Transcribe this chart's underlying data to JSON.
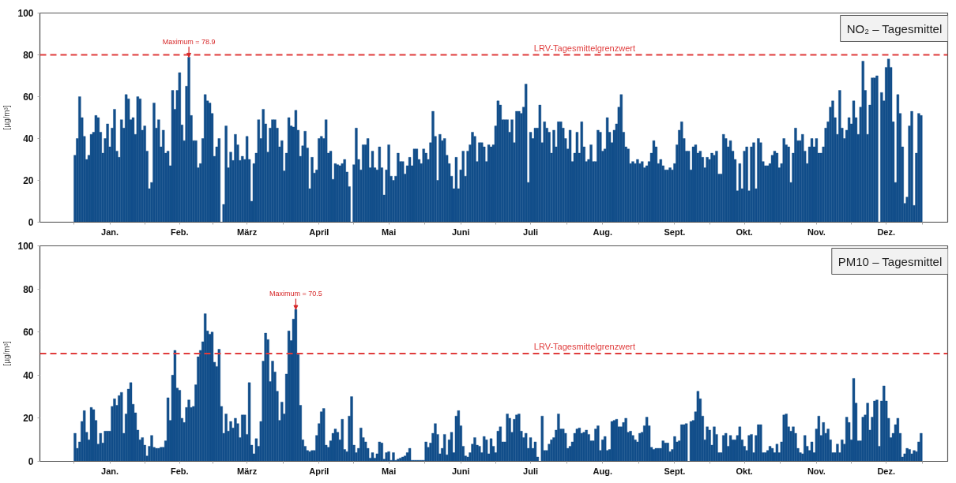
{
  "chart_data": [
    {
      "type": "bar",
      "title": "NO₂ – Tagesmittel",
      "ylabel": "[µg/m³]",
      "color": "#124e8a",
      "categories": [
        null,
        null,
        null,
        null,
        null,
        null,
        null,
        null,
        null,
        null,
        null,
        null,
        null,
        null,
        null,
        "Jan.",
        null,
        null,
        null,
        null,
        null,
        null,
        null,
        null,
        null,
        null,
        null,
        null,
        null,
        null,
        null,
        null,
        null,
        null,
        null,
        null,
        null,
        null,
        null,
        null,
        null,
        null,
        null,
        null,
        null,
        "Feb.",
        null,
        null,
        null,
        null,
        null,
        null,
        null,
        null,
        null,
        null,
        null,
        null,
        null,
        null,
        null,
        null,
        null,
        null,
        null,
        null,
        null,
        null,
        null,
        null,
        null,
        null,
        null,
        null,
        "März",
        null,
        null,
        null,
        null,
        null,
        null,
        null,
        null,
        null,
        null,
        null,
        null,
        null,
        null,
        null,
        null,
        null,
        null,
        null,
        null,
        null,
        null,
        null,
        null,
        null,
        null,
        null,
        null,
        null,
        null,
        "April",
        null,
        null,
        null,
        null,
        null,
        null,
        null,
        null,
        null,
        null,
        null,
        null,
        null,
        null,
        null,
        null,
        null,
        null,
        null,
        null,
        null,
        null,
        null,
        null,
        null,
        null,
        null,
        null,
        null,
        "Mai",
        null,
        null,
        null,
        null,
        null,
        null,
        null,
        null,
        null,
        null,
        null,
        null,
        null,
        null,
        null,
        null,
        null,
        null,
        null,
        null,
        null,
        null,
        null,
        null,
        null,
        null,
        null,
        null,
        null,
        null,
        "Juni",
        null,
        null,
        null,
        null,
        null,
        null,
        null,
        null,
        null,
        null,
        null,
        null,
        null,
        null,
        null,
        null,
        null,
        null,
        null,
        null,
        null,
        null,
        null,
        null,
        null,
        null,
        null,
        null,
        null,
        "Juli",
        null,
        null,
        null,
        null,
        null,
        null,
        null,
        null,
        null,
        null,
        null,
        null,
        null,
        null,
        null,
        null,
        null,
        null,
        null,
        null,
        null,
        null,
        null,
        null,
        null,
        null,
        null,
        null,
        null,
        null,
        "Aug.",
        null,
        null,
        null,
        null,
        null,
        null,
        null,
        null,
        null,
        null,
        null,
        null,
        null,
        null,
        null,
        null,
        null,
        null,
        null,
        null,
        null,
        null,
        null,
        null,
        null,
        null,
        null,
        null,
        null,
        null,
        "Sept.",
        null,
        null,
        null,
        null,
        null,
        null,
        null,
        null,
        null,
        null,
        null,
        null,
        null,
        null,
        null,
        null,
        null,
        null,
        null,
        null,
        null,
        null,
        null,
        null,
        null,
        null,
        null,
        null,
        null,
        "Okt.",
        null,
        null,
        null,
        null,
        null,
        null,
        null,
        null,
        null,
        null,
        null,
        null,
        null,
        null,
        null,
        null,
        null,
        null,
        null,
        null,
        null,
        null,
        null,
        null,
        null,
        null,
        null,
        null,
        null,
        null,
        "Nov.",
        null,
        null,
        null,
        null,
        null,
        null,
        null,
        null,
        null,
        null,
        null,
        null,
        null,
        null,
        null,
        null,
        null,
        null,
        null,
        null,
        null,
        null,
        null,
        null,
        null,
        null,
        null,
        null,
        null,
        "Dez.",
        null,
        null,
        null,
        null,
        null,
        null,
        null,
        null,
        null,
        null,
        null,
        null,
        null,
        null,
        null
      ],
      "values": [
        32,
        40,
        60,
        50,
        41,
        30,
        32,
        42,
        43,
        51,
        50,
        43,
        33,
        40,
        47,
        36,
        45,
        54,
        34,
        31,
        49,
        45,
        61,
        59,
        49,
        50,
        42,
        60,
        59,
        44,
        46,
        34,
        16,
        19,
        57,
        45,
        49,
        36,
        44,
        33,
        34,
        27,
        63,
        54,
        63,
        71.5,
        46.5,
        39,
        65,
        78.9,
        51,
        39,
        39,
        26,
        28,
        40,
        61,
        58,
        57,
        52,
        31.5,
        36,
        40,
        null,
        8.5,
        46,
        26,
        33.5,
        29.5,
        42,
        37,
        29.5,
        31.5,
        30,
        41,
        30,
        10,
        28,
        33,
        49,
        40,
        54,
        47,
        33.5,
        45,
        49,
        49,
        45,
        36,
        39,
        24.5,
        33,
        50,
        46,
        45.5,
        53.5,
        44,
        31.5,
        36.5,
        43.5,
        35.5,
        16,
        31,
        23.5,
        25,
        40,
        41,
        40,
        49,
        33,
        34,
        20.5,
        28,
        27.5,
        27,
        28,
        30,
        24,
        17,
        null,
        27.5,
        45,
        30,
        25,
        37,
        37,
        40,
        26,
        34,
        26,
        25,
        36,
        26,
        13,
        25,
        37,
        22,
        20,
        22,
        33,
        29,
        29,
        23,
        27,
        31,
        27,
        35,
        35,
        30,
        28,
        35,
        33,
        30,
        38,
        53,
        41,
        20,
        42,
        39,
        40,
        32,
        28,
        22,
        16,
        31,
        16,
        25,
        34,
        22,
        34,
        37,
        43,
        41,
        29,
        38,
        38,
        36,
        29,
        37,
        36,
        37,
        46,
        58,
        56,
        49,
        49,
        49,
        43,
        49,
        38,
        53,
        53,
        52,
        55,
        66,
        19,
        43,
        40,
        45,
        45,
        56,
        38,
        48,
        45,
        43,
        33,
        44,
        36,
        48,
        48,
        45,
        40,
        35,
        44,
        29,
        33,
        43,
        33,
        48,
        36,
        29,
        30,
        37,
        29,
        29,
        44,
        43,
        34,
        35,
        50,
        43,
        38,
        44,
        47,
        55,
        61,
        43,
        36,
        35,
        28,
        29,
        28,
        30,
        28,
        29,
        26,
        27,
        29,
        33,
        39,
        36,
        28,
        30,
        27,
        25,
        25,
        26,
        25,
        28,
        37,
        44,
        48,
        40,
        34,
        34,
        25,
        36,
        37,
        33,
        34,
        31,
        26,
        31,
        30,
        33,
        32,
        34,
        23,
        23,
        42,
        40,
        36,
        39,
        34,
        30,
        15,
        28,
        16,
        34,
        36,
        15,
        36,
        38,
        16,
        40,
        38,
        29,
        27,
        27,
        28,
        32,
        34,
        33,
        26,
        28,
        40,
        37,
        36,
        19,
        33,
        45,
        39,
        39,
        42,
        34,
        28,
        36,
        40,
        36,
        40,
        33,
        33,
        36,
        45,
        48,
        55,
        58,
        50,
        42,
        63,
        45,
        40,
        44,
        50,
        47,
        58,
        50,
        42,
        55,
        77,
        63,
        42,
        56,
        69,
        69,
        70,
        null,
        62,
        58,
        74,
        78,
        74,
        48,
        19,
        61,
        52,
        36,
        9,
        12,
        46,
        53,
        8,
        33,
        52,
        51
      ],
      "ylim": [
        0,
        100
      ],
      "yticks": [
        0,
        20,
        40,
        60,
        80,
        100
      ],
      "ref_lines": [
        {
          "axis": "y",
          "value": 80,
          "label": "LRV-Tagesmittelgrenzwert",
          "color": "#e03c3c",
          "line_style": "dashed"
        }
      ],
      "annotations": [
        {
          "text": "Maximum = 78.9",
          "y": 78.9
        }
      ]
    },
    {
      "type": "bar",
      "title": "PM10 – Tagesmittel",
      "ylabel": "[µg/m³]",
      "color": "#124e8a",
      "categories": [
        null,
        null,
        null,
        null,
        null,
        null,
        null,
        null,
        null,
        null,
        null,
        null,
        null,
        null,
        null,
        "Jan.",
        null,
        null,
        null,
        null,
        null,
        null,
        null,
        null,
        null,
        null,
        null,
        null,
        null,
        null,
        null,
        null,
        null,
        null,
        null,
        null,
        null,
        null,
        null,
        null,
        null,
        null,
        null,
        null,
        null,
        "Feb.",
        null,
        null,
        null,
        null,
        null,
        null,
        null,
        null,
        null,
        null,
        null,
        null,
        null,
        null,
        null,
        null,
        null,
        null,
        null,
        null,
        null,
        null,
        null,
        null,
        null,
        null,
        null,
        null,
        "März",
        null,
        null,
        null,
        null,
        null,
        null,
        null,
        null,
        null,
        null,
        null,
        null,
        null,
        null,
        null,
        null,
        null,
        null,
        null,
        null,
        null,
        null,
        null,
        null,
        null,
        null,
        null,
        null,
        null,
        null,
        "April",
        null,
        null,
        null,
        null,
        null,
        null,
        null,
        null,
        null,
        null,
        null,
        null,
        null,
        null,
        null,
        null,
        null,
        null,
        null,
        null,
        null,
        null,
        null,
        null,
        null,
        null,
        null,
        null,
        null,
        "Mai",
        null,
        null,
        null,
        null,
        null,
        null,
        null,
        null,
        null,
        null,
        null,
        null,
        null,
        null,
        null,
        null,
        null,
        null,
        null,
        null,
        null,
        null,
        null,
        null,
        null,
        null,
        null,
        null,
        null,
        null,
        "Juni",
        null,
        null,
        null,
        null,
        null,
        null,
        null,
        null,
        null,
        null,
        null,
        null,
        null,
        null,
        null,
        null,
        null,
        null,
        null,
        null,
        null,
        null,
        null,
        null,
        null,
        null,
        null,
        null,
        null,
        "Juli",
        null,
        null,
        null,
        null,
        null,
        null,
        null,
        null,
        null,
        null,
        null,
        null,
        null,
        null,
        null,
        null,
        null,
        null,
        null,
        null,
        null,
        null,
        null,
        null,
        null,
        null,
        null,
        null,
        null,
        null,
        "Aug.",
        null,
        null,
        null,
        null,
        null,
        null,
        null,
        null,
        null,
        null,
        null,
        null,
        null,
        null,
        null,
        null,
        null,
        null,
        null,
        null,
        null,
        null,
        null,
        null,
        null,
        null,
        null,
        null,
        null,
        null,
        "Sept.",
        null,
        null,
        null,
        null,
        null,
        null,
        null,
        null,
        null,
        null,
        null,
        null,
        null,
        null,
        null,
        null,
        null,
        null,
        null,
        null,
        null,
        null,
        null,
        null,
        null,
        null,
        null,
        null,
        null,
        "Okt.",
        null,
        null,
        null,
        null,
        null,
        null,
        null,
        null,
        null,
        null,
        null,
        null,
        null,
        null,
        null,
        null,
        null,
        null,
        null,
        null,
        null,
        null,
        null,
        null,
        null,
        null,
        null,
        null,
        null,
        null,
        "Nov.",
        null,
        null,
        null,
        null,
        null,
        null,
        null,
        null,
        null,
        null,
        null,
        null,
        null,
        null,
        null,
        null,
        null,
        null,
        null,
        null,
        null,
        null,
        null,
        null,
        null,
        null,
        null,
        null,
        null,
        "Dez.",
        null,
        null,
        null,
        null,
        null,
        null,
        null,
        null,
        null,
        null,
        null,
        null,
        null,
        null,
        null
      ],
      "values": [
        13,
        6,
        9,
        18.5,
        23.5,
        13.5,
        10,
        25,
        24,
        19,
        8,
        13,
        8.5,
        14,
        14,
        14,
        25.5,
        29,
        26,
        30.5,
        32,
        13,
        22,
        33.5,
        36.5,
        26.5,
        22.5,
        14.5,
        10,
        11,
        7.5,
        2.5,
        7,
        12,
        6.5,
        6,
        6,
        6.5,
        6.5,
        9.5,
        29.5,
        19,
        40,
        51.5,
        34,
        33,
        20,
        18,
        25,
        28.5,
        25,
        25.5,
        35.5,
        48.5,
        51.5,
        55.5,
        68.5,
        60.5,
        59,
        60,
        46,
        44,
        52,
        25.5,
        13,
        22,
        14,
        18.5,
        15.5,
        20,
        17.5,
        11,
        21.5,
        21.5,
        12.5,
        36.5,
        7.5,
        3.5,
        10.5,
        7,
        18.5,
        46.5,
        59.5,
        56.5,
        37,
        46.5,
        41.5,
        32.5,
        19,
        27.5,
        22,
        40.5,
        60.5,
        56,
        66,
        70.5,
        49.5,
        26,
        10,
        7,
        5,
        4.5,
        5,
        5,
        12,
        17.5,
        23,
        24.5,
        7.5,
        6.5,
        9.5,
        13,
        15,
        13.5,
        10,
        19.5,
        5.5,
        4.5,
        21,
        30,
        7.5,
        4,
        6,
        15.5,
        11,
        9,
        6,
        1.5,
        4,
        1.5,
        3.5,
        9,
        8.5,
        1,
        4,
        4.5,
        0.5,
        4,
        0.5,
        1,
        1.5,
        2,
        2.5,
        4,
        6,
        0.5,
        0.5,
        0.5,
        0.5,
        0.5,
        0.5,
        9,
        6.5,
        8.5,
        13,
        17.5,
        12.5,
        3.5,
        6,
        12.5,
        3,
        10,
        13.5,
        4,
        21,
        23.5,
        16.5,
        7,
        2.5,
        2,
        4,
        8,
        11,
        7.5,
        7,
        4,
        11.5,
        10,
        3.5,
        10.5,
        7,
        4,
        14,
        16,
        9,
        9,
        22,
        20,
        13.5,
        19.5,
        21.5,
        22,
        14,
        11,
        13,
        6,
        11,
        6,
        9,
        2,
        null,
        21,
        5,
        5,
        8,
        10,
        11,
        14.5,
        22,
        15,
        15,
        13,
        6,
        7,
        9,
        13,
        15,
        15.5,
        13,
        13.5,
        14.5,
        12.5,
        9.5,
        9.5,
        15,
        16.5,
        5,
        10,
        11.5,
        5,
        5.5,
        18.5,
        19,
        19.5,
        16,
        16,
        18,
        20,
        13.5,
        14,
        12,
        10,
        9,
        13,
        13.5,
        16.5,
        20.5,
        16.5,
        6.5,
        5.5,
        6,
        6,
        6,
        9.5,
        8.5,
        8.5,
        4.5,
        5.5,
        11.5,
        9,
        9.5,
        17,
        17,
        17.5,
        null,
        18.5,
        19,
        23,
        32.5,
        29,
        21,
        10,
        16,
        14.5,
        7.5,
        16,
        12.5,
        4,
        4,
        12,
        13,
        7,
        12,
        10,
        10,
        12,
        16,
        10,
        7,
        5,
        12,
        12.5,
        4,
        12,
        17,
        17,
        4,
        4,
        5,
        7,
        6,
        4,
        8,
        4,
        9,
        21.5,
        22,
        16,
        14,
        16,
        13,
        6,
        4,
        3.5,
        12,
        7,
        5,
        9,
        4,
        15,
        21,
        12,
        18,
        13,
        15,
        10,
        4,
        4,
        8,
        4,
        10,
        8,
        20.5,
        18,
        10,
        38.5,
        27,
        9.5,
        9.5,
        20.5,
        21.5,
        27,
        14.5,
        20.5,
        28,
        28.5,
        7,
        28,
        35,
        28,
        20,
        11,
        13,
        17,
        20,
        13,
        2,
        3.5,
        6,
        5.5,
        3.5,
        5,
        4.5,
        9,
        13
      ],
      "ylim": [
        0,
        100
      ],
      "yticks": [
        0,
        20,
        40,
        60,
        80,
        100
      ],
      "ref_lines": [
        {
          "axis": "y",
          "value": 50,
          "label": "LRV-Tagesmittelgrenzwert",
          "color": "#e03c3c",
          "line_style": "dashed"
        }
      ],
      "annotations": [
        {
          "text": "Maximum = 70.5",
          "y": 70.5
        }
      ]
    }
  ]
}
